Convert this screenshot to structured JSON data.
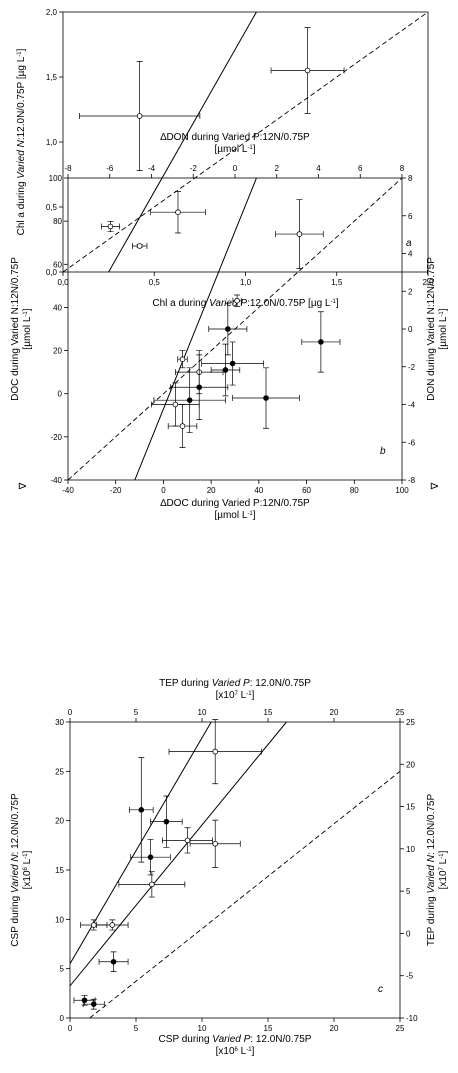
{
  "chart_data": [
    {
      "type": "scatter",
      "panel_label": "a",
      "ylabel": [
        "Chl a during ",
        "Varied N",
        ":12.0N/0.75P [µg L",
        "-1",
        "]"
      ],
      "xlabel": [
        "Chl a during ",
        "Varied P",
        ":12.0N/0.75P [µg L",
        "-1",
        "]"
      ],
      "xlim": [
        0,
        2
      ],
      "ylim": [
        0,
        2
      ],
      "xticks": [
        "0,0",
        "0,5",
        "1,0",
        "1,5",
        "2,0"
      ],
      "yticks": [
        "0,0",
        "0,5",
        "1,0",
        "1,5",
        "2,0"
      ],
      "series": [
        {
          "name": "",
          "marker": "open",
          "points": [
            {
              "x": 0.42,
              "y": 1.2,
              "xerr": 0.33,
              "yerr": 0.42
            },
            {
              "x": 1.34,
              "y": 1.55,
              "xerr": 0.2,
              "yerr": 0.33
            },
            {
              "x": 0.63,
              "y": 0.46,
              "xerr": 0.15,
              "yerr": 0.16
            },
            {
              "x": 0.26,
              "y": 0.35,
              "xerr": 0.05,
              "yerr": 0.04
            },
            {
              "x": 0.42,
              "y": 0.2,
              "xerr": 0.04,
              "yerr": 0.01
            }
          ]
        }
      ],
      "regression_line": [
        [
          0.25,
          0.0
        ],
        [
          1.06,
          2.0
        ]
      ],
      "one_to_one_line": [
        [
          0,
          0
        ],
        [
          2,
          2
        ]
      ]
    },
    {
      "type": "scatter",
      "panel_label": "b",
      "top_label": [
        "∆DON during Varied P:12N/0.75P",
        "[µmol L",
        "-1",
        "]"
      ],
      "ylabel": [
        "∇",
        "DOC during Varied N:12N/0.75P",
        "[µmol L",
        "-1",
        "]"
      ],
      "right_label": [
        "∇",
        "DON during Varied N:12N/0.75P",
        "[µmol L",
        "-1",
        "]"
      ],
      "xlabel": [
        "∆DOC during Varied P:12N/0.75P",
        "[µmol L",
        "-1",
        "]"
      ],
      "xlim": [
        -40,
        100
      ],
      "ylim": [
        -40,
        100
      ],
      "xlim_top": [
        -8,
        8
      ],
      "ylim_right": [
        -8,
        8
      ],
      "xticks": [
        "-40",
        "-20",
        "0",
        "20",
        "40",
        "60",
        "80",
        "100"
      ],
      "yticks": [
        "-40",
        "-20",
        "0",
        "20",
        "40",
        "60",
        "80",
        "100"
      ],
      "xticks_top": [
        "-8",
        "-6",
        "-4",
        "-2",
        "0",
        "2",
        "4",
        "6",
        "8"
      ],
      "yticks_right": [
        "-8",
        "-6",
        "-4",
        "-2",
        "0",
        "2",
        "4",
        "6",
        "8"
      ],
      "series": [
        {
          "name": "",
          "marker": "open",
          "axes": "bottom-left",
          "points": [
            {
              "x": 57,
              "y": 74,
              "xerr": 10,
              "yerr": 16
            },
            {
              "x": 8,
              "y": -15,
              "xerr": 6,
              "yerr": 10
            },
            {
              "x": 5,
              "y": -5,
              "xerr": 10,
              "yerr": 10
            },
            {
              "x": 15,
              "y": 10,
              "xerr": 10,
              "yerr": 10
            },
            {
              "x": 8,
              "y": 16,
              "xerr": 2,
              "yerr": 4
            }
          ]
        },
        {
          "name": "",
          "marker": "open",
          "axes": "top-right",
          "points": [
            {
              "x": 0.1,
              "y": 1.5,
              "xerr": 0.2,
              "yerr": 0.3
            }
          ]
        },
        {
          "name": "",
          "marker": "filled",
          "axes": "bottom-left",
          "points": [
            {
              "x": 27,
              "y": 30,
              "xerr": 8,
              "yerr": 12
            },
            {
              "x": 29,
              "y": 14,
              "xerr": 13,
              "yerr": 10
            },
            {
              "x": 26,
              "y": 11,
              "xerr": 6,
              "yerr": 12
            },
            {
              "x": 15,
              "y": 3,
              "xerr": 12,
              "yerr": 15
            },
            {
              "x": 11,
              "y": -3,
              "xerr": 15,
              "yerr": 15
            },
            {
              "x": 43,
              "y": -2,
              "xerr": 14,
              "yerr": 14
            },
            {
              "x": 66,
              "y": 24,
              "xerr": 8,
              "yerr": 14
            }
          ]
        }
      ],
      "regression_line": [
        [
          -12,
          -40
        ],
        [
          39,
          100
        ]
      ],
      "one_to_one_line": [
        [
          -40,
          -40
        ],
        [
          100,
          100
        ]
      ]
    },
    {
      "type": "scatter",
      "panel_label": "c",
      "top_label": [
        "TEP during ",
        "Varied P",
        ": 12.0N/0.75P",
        "[x10",
        "7",
        " L",
        "-1",
        "]"
      ],
      "ylabel": [
        "CSP during ",
        "Varied N",
        ": 12.0N/0.75P",
        "[x10",
        "6",
        " L",
        "-1",
        "]"
      ],
      "right_label": [
        "TEP during ",
        "Varied N",
        ": 12.0N/0.75P",
        "[x10",
        "7",
        " L",
        "-1",
        "]"
      ],
      "xlabel": [
        "CSP during ",
        "Varied P",
        ": 12.0N/0.75P",
        "[x10",
        "6",
        " L",
        "-1",
        "]"
      ],
      "xlim": [
        0,
        25
      ],
      "ylim": [
        0,
        30
      ],
      "xlim_top": [
        0,
        25
      ],
      "ylim_right": [
        -10,
        25
      ],
      "xticks": [
        "0",
        "5",
        "10",
        "15",
        "20",
        "25"
      ],
      "yticks": [
        "0",
        "5",
        "10",
        "15",
        "20",
        "25",
        "30"
      ],
      "xticks_top": [
        "0",
        "5",
        "10",
        "15",
        "20",
        "25"
      ],
      "yticks_right": [
        "-10",
        "-5",
        "0",
        "5",
        "10",
        "15",
        "20",
        "25"
      ],
      "series": [
        {
          "name": "",
          "marker": "filled",
          "axes": "bottom-left",
          "points": [
            {
              "x": 5.4,
              "y": 21.1,
              "xerr": 0.9,
              "yerr": 5.3
            },
            {
              "x": 7.3,
              "y": 19.9,
              "xerr": 1.2,
              "yerr": 2.6
            },
            {
              "x": 6.1,
              "y": 16.3,
              "xerr": 1.5,
              "yerr": 1.8
            },
            {
              "x": 3.3,
              "y": 5.7,
              "xerr": 1.1,
              "yerr": 1.0
            },
            {
              "x": 1.1,
              "y": 1.8,
              "xerr": 0.8,
              "yerr": 0.5
            },
            {
              "x": 1.8,
              "y": 1.4,
              "xerr": 0.8,
              "yerr": 0.5
            }
          ]
        },
        {
          "name": "",
          "marker": "open",
          "axes": "top-right",
          "points": [
            {
              "x": 11,
              "y": 21.5,
              "xerr": 3.5,
              "yerr": 3.8
            },
            {
              "x": 8.9,
              "y": 11.0,
              "xerr": 1.9,
              "yerr": 1.5
            },
            {
              "x": 11.0,
              "y": 10.6,
              "xerr": 1.9,
              "yerr": 2.8
            },
            {
              "x": 6.2,
              "y": 5.8,
              "xerr": 2.5,
              "yerr": 1.5
            },
            {
              "x": 1.8,
              "y": 1.0,
              "xerr": 1.0,
              "yerr": 0.6
            },
            {
              "x": 3.2,
              "y": 1.0,
              "xerr": 1.2,
              "yerr": 0.6
            }
          ]
        }
      ],
      "regression_line": [
        [
          0,
          5.5
        ],
        [
          10.7,
          30
        ]
      ],
      "regression_line_right": [
        [
          0,
          -6.2
        ],
        [
          16.4,
          25
        ]
      ],
      "one_to_one_line": [
        [
          1.5,
          0
        ],
        [
          25,
          25
        ]
      ]
    }
  ]
}
